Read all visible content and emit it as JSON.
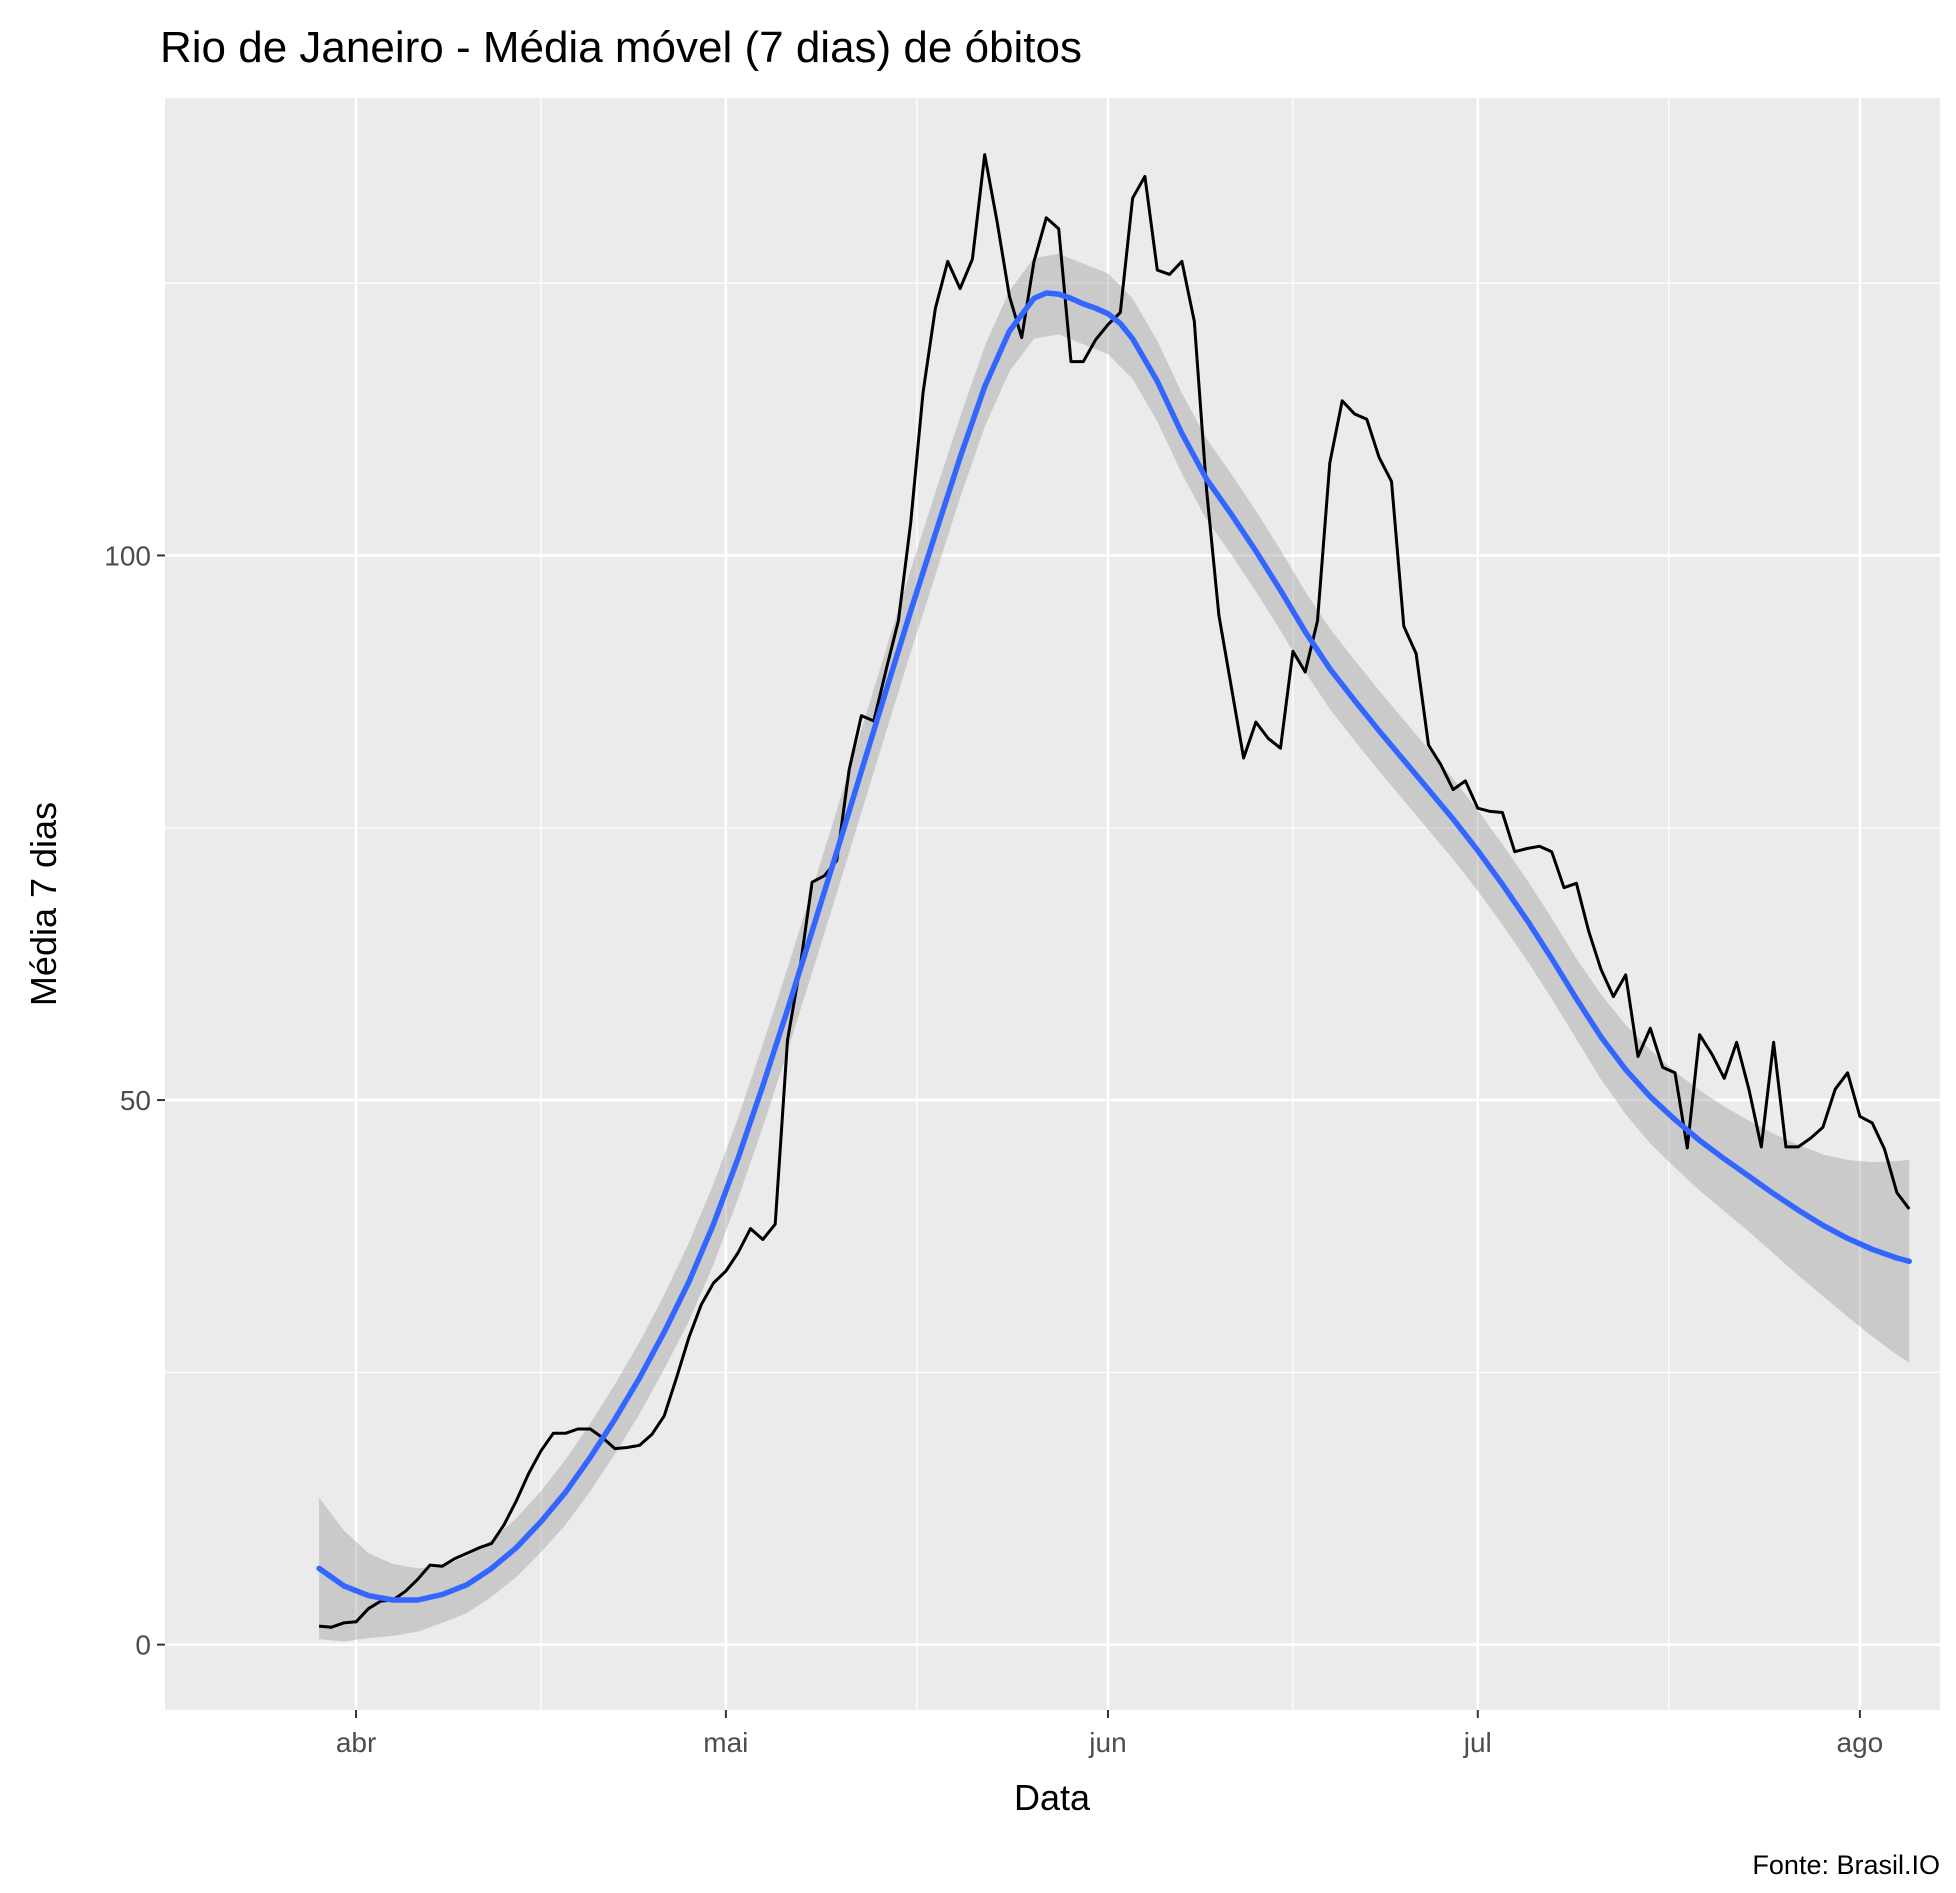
{
  "chart_data": {
    "type": "line",
    "title": "Rio de Janeiro - Média móvel (7 dias) de óbitos",
    "xlabel": "Data",
    "ylabel": "Média 7 dias",
    "caption": "Fonte: Brasil.IO",
    "x_ticks": [
      {
        "label": "abr",
        "day": 0
      },
      {
        "label": "mai",
        "day": 30
      },
      {
        "label": "jun",
        "day": 61
      },
      {
        "label": "jul",
        "day": 91
      },
      {
        "label": "ago",
        "day": 122
      }
    ],
    "x_minor_days": [
      15,
      45.5,
      76,
      106.5
    ],
    "xlim_days": [
      -15.5,
      128.5
    ],
    "y_ticks": [
      0,
      50,
      100
    ],
    "y_minor": [
      25,
      75,
      125
    ],
    "ylim": [
      -6,
      142
    ],
    "grid": true,
    "series": [
      {
        "type": "line",
        "color": "#000000",
        "values": [
          [
            -3,
            1.7
          ],
          [
            -2,
            1.6
          ],
          [
            -1,
            2.0
          ],
          [
            0,
            2.1
          ],
          [
            1,
            3.3
          ],
          [
            2,
            4.0
          ],
          [
            3,
            4.1
          ],
          [
            4,
            4.9
          ],
          [
            5,
            6.0
          ],
          [
            6,
            7.3
          ],
          [
            7,
            7.2
          ],
          [
            8,
            7.9
          ],
          [
            9,
            8.4
          ],
          [
            10,
            8.9
          ],
          [
            11,
            9.3
          ],
          [
            12,
            11.0
          ],
          [
            13,
            13.2
          ],
          [
            14,
            15.7
          ],
          [
            15,
            17.8
          ],
          [
            16,
            19.4
          ],
          [
            17,
            19.4
          ],
          [
            18,
            19.8
          ],
          [
            19,
            19.8
          ],
          [
            20,
            19.0
          ],
          [
            21,
            18.0
          ],
          [
            22,
            18.1
          ],
          [
            23,
            18.3
          ],
          [
            24,
            19.3
          ],
          [
            25,
            21.0
          ],
          [
            26,
            24.5
          ],
          [
            27,
            28.2
          ],
          [
            28,
            31.2
          ],
          [
            29,
            33.2
          ],
          [
            30,
            34.3
          ],
          [
            31,
            36.0
          ],
          [
            32,
            38.2
          ],
          [
            33,
            37.2
          ],
          [
            34,
            38.6
          ],
          [
            35,
            55.5
          ],
          [
            36,
            62.0
          ],
          [
            37,
            70.0
          ],
          [
            38,
            70.6
          ],
          [
            39,
            72.0
          ],
          [
            40,
            80.3
          ],
          [
            41,
            85.3
          ],
          [
            42,
            84.8
          ],
          [
            43,
            89.5
          ],
          [
            44,
            94.0
          ],
          [
            45,
            103.0
          ],
          [
            46,
            115.0
          ],
          [
            47,
            122.7
          ],
          [
            48,
            127.0
          ],
          [
            49,
            124.5
          ],
          [
            50,
            127.2
          ],
          [
            51,
            136.8
          ],
          [
            52,
            130.7
          ],
          [
            53,
            123.8
          ],
          [
            54,
            120.0
          ],
          [
            55,
            127.0
          ],
          [
            56,
            131.0
          ],
          [
            57,
            130.0
          ],
          [
            58,
            117.8
          ],
          [
            59,
            117.8
          ],
          [
            60,
            119.8
          ],
          [
            61,
            121.2
          ],
          [
            62,
            122.3
          ],
          [
            63,
            132.8
          ],
          [
            64,
            134.8
          ],
          [
            65,
            126.2
          ],
          [
            66,
            125.8
          ],
          [
            67,
            127.0
          ],
          [
            68,
            121.5
          ],
          [
            69,
            106.0
          ],
          [
            70,
            94.5
          ],
          [
            71,
            88.0
          ],
          [
            72,
            81.4
          ],
          [
            73,
            84.7
          ],
          [
            74,
            83.2
          ],
          [
            75,
            82.3
          ],
          [
            76,
            91.2
          ],
          [
            77,
            89.3
          ],
          [
            78,
            94.0
          ],
          [
            79,
            108.5
          ],
          [
            80,
            114.2
          ],
          [
            81,
            113.0
          ],
          [
            82,
            112.5
          ],
          [
            83,
            109.0
          ],
          [
            84,
            106.8
          ],
          [
            85,
            93.5
          ],
          [
            86,
            91.0
          ],
          [
            87,
            82.6
          ],
          [
            88,
            80.8
          ],
          [
            89,
            78.5
          ],
          [
            90,
            79.3
          ],
          [
            91,
            76.8
          ],
          [
            92,
            76.5
          ],
          [
            93,
            76.4
          ],
          [
            94,
            72.8
          ],
          [
            95,
            73.1
          ],
          [
            96,
            73.3
          ],
          [
            97,
            72.8
          ],
          [
            98,
            69.5
          ],
          [
            99,
            69.9
          ],
          [
            100,
            65.5
          ],
          [
            101,
            62.0
          ],
          [
            102,
            59.5
          ],
          [
            103,
            61.5
          ],
          [
            104,
            54.0
          ],
          [
            105,
            56.6
          ],
          [
            106,
            53.0
          ],
          [
            107,
            52.5
          ],
          [
            108,
            45.6
          ],
          [
            109,
            56.0
          ],
          [
            110,
            54.2
          ],
          [
            111,
            52.0
          ],
          [
            112,
            55.3
          ],
          [
            113,
            51.0
          ],
          [
            114,
            45.7
          ],
          [
            115,
            55.3
          ],
          [
            116,
            45.7
          ],
          [
            117,
            45.7
          ],
          [
            118,
            46.5
          ],
          [
            119,
            47.5
          ],
          [
            120,
            51.0
          ],
          [
            121,
            52.5
          ],
          [
            122,
            48.5
          ],
          [
            123,
            47.9
          ],
          [
            124,
            45.5
          ],
          [
            125,
            41.5
          ],
          [
            126,
            40.0
          ]
        ]
      },
      {
        "type": "smooth",
        "color": "#3366ff",
        "values": [
          [
            -3,
            7.0
          ],
          [
            -1,
            5.4
          ],
          [
            1,
            4.5
          ],
          [
            3,
            4.1
          ],
          [
            5,
            4.1
          ],
          [
            7,
            4.6
          ],
          [
            9,
            5.5
          ],
          [
            11,
            7.0
          ],
          [
            13,
            8.9
          ],
          [
            15,
            11.3
          ],
          [
            17,
            14.0
          ],
          [
            19,
            17.2
          ],
          [
            21,
            20.7
          ],
          [
            23,
            24.5
          ],
          [
            25,
            28.7
          ],
          [
            27,
            33.3
          ],
          [
            29,
            38.6
          ],
          [
            31,
            44.7
          ],
          [
            33,
            51.3
          ],
          [
            35,
            58.3
          ],
          [
            37,
            65.5
          ],
          [
            39,
            72.8
          ],
          [
            41,
            80.2
          ],
          [
            43,
            87.6
          ],
          [
            45,
            94.9
          ],
          [
            47,
            102.0
          ],
          [
            49,
            109.0
          ],
          [
            51,
            115.5
          ],
          [
            53,
            120.6
          ],
          [
            55,
            123.6
          ],
          [
            56,
            124.1
          ],
          [
            57,
            124.0
          ],
          [
            58,
            123.6
          ],
          [
            59,
            123.1
          ],
          [
            60,
            122.7
          ],
          [
            61,
            122.2
          ],
          [
            62,
            121.3
          ],
          [
            63,
            119.9
          ],
          [
            65,
            116.0
          ],
          [
            67,
            111.2
          ],
          [
            69,
            107.0
          ],
          [
            71,
            103.8
          ],
          [
            73,
            100.4
          ],
          [
            75,
            96.8
          ],
          [
            77,
            93.0
          ],
          [
            79,
            89.6
          ],
          [
            81,
            86.7
          ],
          [
            83,
            83.9
          ],
          [
            85,
            81.2
          ],
          [
            87,
            78.5
          ],
          [
            89,
            75.8
          ],
          [
            91,
            72.9
          ],
          [
            93,
            69.8
          ],
          [
            95,
            66.5
          ],
          [
            97,
            63.0
          ],
          [
            99,
            59.3
          ],
          [
            101,
            55.8
          ],
          [
            103,
            52.8
          ],
          [
            105,
            50.3
          ],
          [
            107,
            48.2
          ],
          [
            109,
            46.3
          ],
          [
            111,
            44.6
          ],
          [
            113,
            43.0
          ],
          [
            115,
            41.4
          ],
          [
            117,
            39.9
          ],
          [
            119,
            38.5
          ],
          [
            121,
            37.3
          ],
          [
            123,
            36.3
          ],
          [
            125,
            35.5
          ],
          [
            126,
            35.2
          ]
        ]
      }
    ],
    "confidence_band": {
      "color": "#999999",
      "upper": [
        [
          -3,
          13.5
        ],
        [
          -1,
          10.5
        ],
        [
          1,
          8.4
        ],
        [
          3,
          7.4
        ],
        [
          5,
          7.0
        ],
        [
          7,
          7.2
        ],
        [
          9,
          8.1
        ],
        [
          11,
          9.6
        ],
        [
          13,
          11.6
        ],
        [
          15,
          14.1
        ],
        [
          17,
          17.0
        ],
        [
          19,
          20.3
        ],
        [
          21,
          23.9
        ],
        [
          23,
          27.8
        ],
        [
          25,
          32.1
        ],
        [
          27,
          36.9
        ],
        [
          29,
          42.3
        ],
        [
          31,
          48.4
        ],
        [
          33,
          55.1
        ],
        [
          35,
          62.1
        ],
        [
          37,
          69.3
        ],
        [
          39,
          76.6
        ],
        [
          41,
          84.0
        ],
        [
          43,
          91.4
        ],
        [
          45,
          98.7
        ],
        [
          47,
          105.8
        ],
        [
          49,
          112.7
        ],
        [
          51,
          119.2
        ],
        [
          53,
          124.3
        ],
        [
          55,
          127.3
        ],
        [
          57,
          127.7
        ],
        [
          59,
          126.8
        ],
        [
          61,
          125.9
        ],
        [
          63,
          123.6
        ],
        [
          65,
          119.7
        ],
        [
          67,
          114.9
        ],
        [
          69,
          110.7
        ],
        [
          71,
          107.5
        ],
        [
          73,
          104.1
        ],
        [
          75,
          100.5
        ],
        [
          77,
          96.7
        ],
        [
          79,
          93.3
        ],
        [
          81,
          90.4
        ],
        [
          83,
          87.6
        ],
        [
          85,
          84.9
        ],
        [
          87,
          82.2
        ],
        [
          89,
          79.5
        ],
        [
          91,
          76.6
        ],
        [
          93,
          73.5
        ],
        [
          95,
          70.2
        ],
        [
          97,
          66.7
        ],
        [
          99,
          63.0
        ],
        [
          101,
          59.7
        ],
        [
          103,
          56.9
        ],
        [
          105,
          54.6
        ],
        [
          107,
          52.6
        ],
        [
          109,
          50.9
        ],
        [
          111,
          49.4
        ],
        [
          113,
          48.1
        ],
        [
          115,
          46.9
        ],
        [
          117,
          45.9
        ],
        [
          119,
          45.0
        ],
        [
          121,
          44.5
        ],
        [
          123,
          44.3
        ],
        [
          125,
          44.4
        ],
        [
          126,
          44.5
        ]
      ],
      "lower": [
        [
          -3,
          0.5
        ],
        [
          -1,
          0.3
        ],
        [
          1,
          0.6
        ],
        [
          3,
          0.8
        ],
        [
          5,
          1.2
        ],
        [
          7,
          2.0
        ],
        [
          9,
          2.9
        ],
        [
          11,
          4.4
        ],
        [
          13,
          6.2
        ],
        [
          15,
          8.5
        ],
        [
          17,
          11.0
        ],
        [
          19,
          14.1
        ],
        [
          21,
          17.5
        ],
        [
          23,
          21.2
        ],
        [
          25,
          25.3
        ],
        [
          27,
          29.7
        ],
        [
          29,
          34.9
        ],
        [
          31,
          41.0
        ],
        [
          33,
          47.5
        ],
        [
          35,
          54.5
        ],
        [
          37,
          61.7
        ],
        [
          39,
          69.0
        ],
        [
          41,
          76.4
        ],
        [
          43,
          83.8
        ],
        [
          45,
          91.1
        ],
        [
          47,
          98.2
        ],
        [
          49,
          105.3
        ],
        [
          51,
          111.8
        ],
        [
          53,
          116.9
        ],
        [
          55,
          119.9
        ],
        [
          57,
          120.3
        ],
        [
          59,
          119.4
        ],
        [
          61,
          118.5
        ],
        [
          63,
          116.2
        ],
        [
          65,
          112.3
        ],
        [
          67,
          107.5
        ],
        [
          69,
          103.3
        ],
        [
          71,
          100.1
        ],
        [
          73,
          96.7
        ],
        [
          75,
          93.1
        ],
        [
          77,
          89.3
        ],
        [
          79,
          85.9
        ],
        [
          81,
          83.0
        ],
        [
          83,
          80.2
        ],
        [
          85,
          77.5
        ],
        [
          87,
          74.8
        ],
        [
          89,
          72.1
        ],
        [
          91,
          69.2
        ],
        [
          93,
          66.1
        ],
        [
          95,
          62.8
        ],
        [
          97,
          59.3
        ],
        [
          99,
          55.6
        ],
        [
          101,
          51.9
        ],
        [
          103,
          48.7
        ],
        [
          105,
          46.0
        ],
        [
          107,
          43.8
        ],
        [
          109,
          41.7
        ],
        [
          111,
          39.8
        ],
        [
          113,
          37.9
        ],
        [
          115,
          35.9
        ],
        [
          117,
          33.9
        ],
        [
          119,
          32.0
        ],
        [
          121,
          30.1
        ],
        [
          123,
          28.3
        ],
        [
          125,
          26.6
        ],
        [
          126,
          25.9
        ]
      ]
    }
  }
}
